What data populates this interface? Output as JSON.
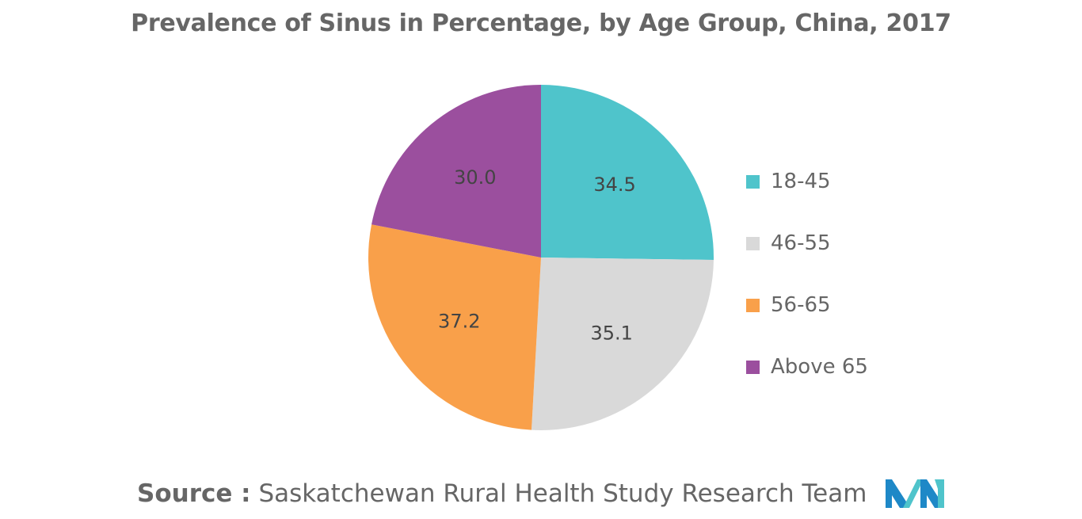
{
  "chart_data": {
    "type": "pie",
    "title": "Prevalence of Sinus in Percentage, by Age Group, China, 2017",
    "categories": [
      "18-45",
      "46-55",
      "56-65",
      "Above 65"
    ],
    "values": [
      34.5,
      35.1,
      37.2,
      30.0
    ],
    "value_labels": [
      "34.5",
      "35.1",
      "37.2",
      "30.0"
    ],
    "colors": [
      "#4fc4cb",
      "#d9d9d9",
      "#f9a04a",
      "#9b4f9e"
    ],
    "legend_position": "right",
    "start_angle": "12 o'clock",
    "direction": "clockwise"
  },
  "source": {
    "prefix": "Source :",
    "text": "Saskatchewan Rural Health Study Research Team"
  },
  "logo": {
    "icon": "brand-logo-icon",
    "colors": [
      "#1e88c7",
      "#4fc4cb"
    ]
  }
}
